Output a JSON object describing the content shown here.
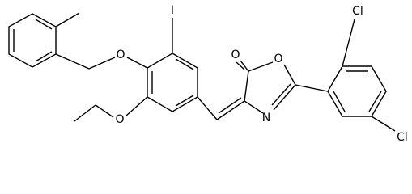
{
  "atoms": {
    "iodine": "I",
    "benzyl_oxygen": "O",
    "ethoxy_oxygen": "O",
    "carbonyl_oxygen": "O",
    "ring_oxygen": "O",
    "ring_nitrogen": "N",
    "chlorine_ortho": "Cl",
    "chlorine_meta": "Cl"
  }
}
